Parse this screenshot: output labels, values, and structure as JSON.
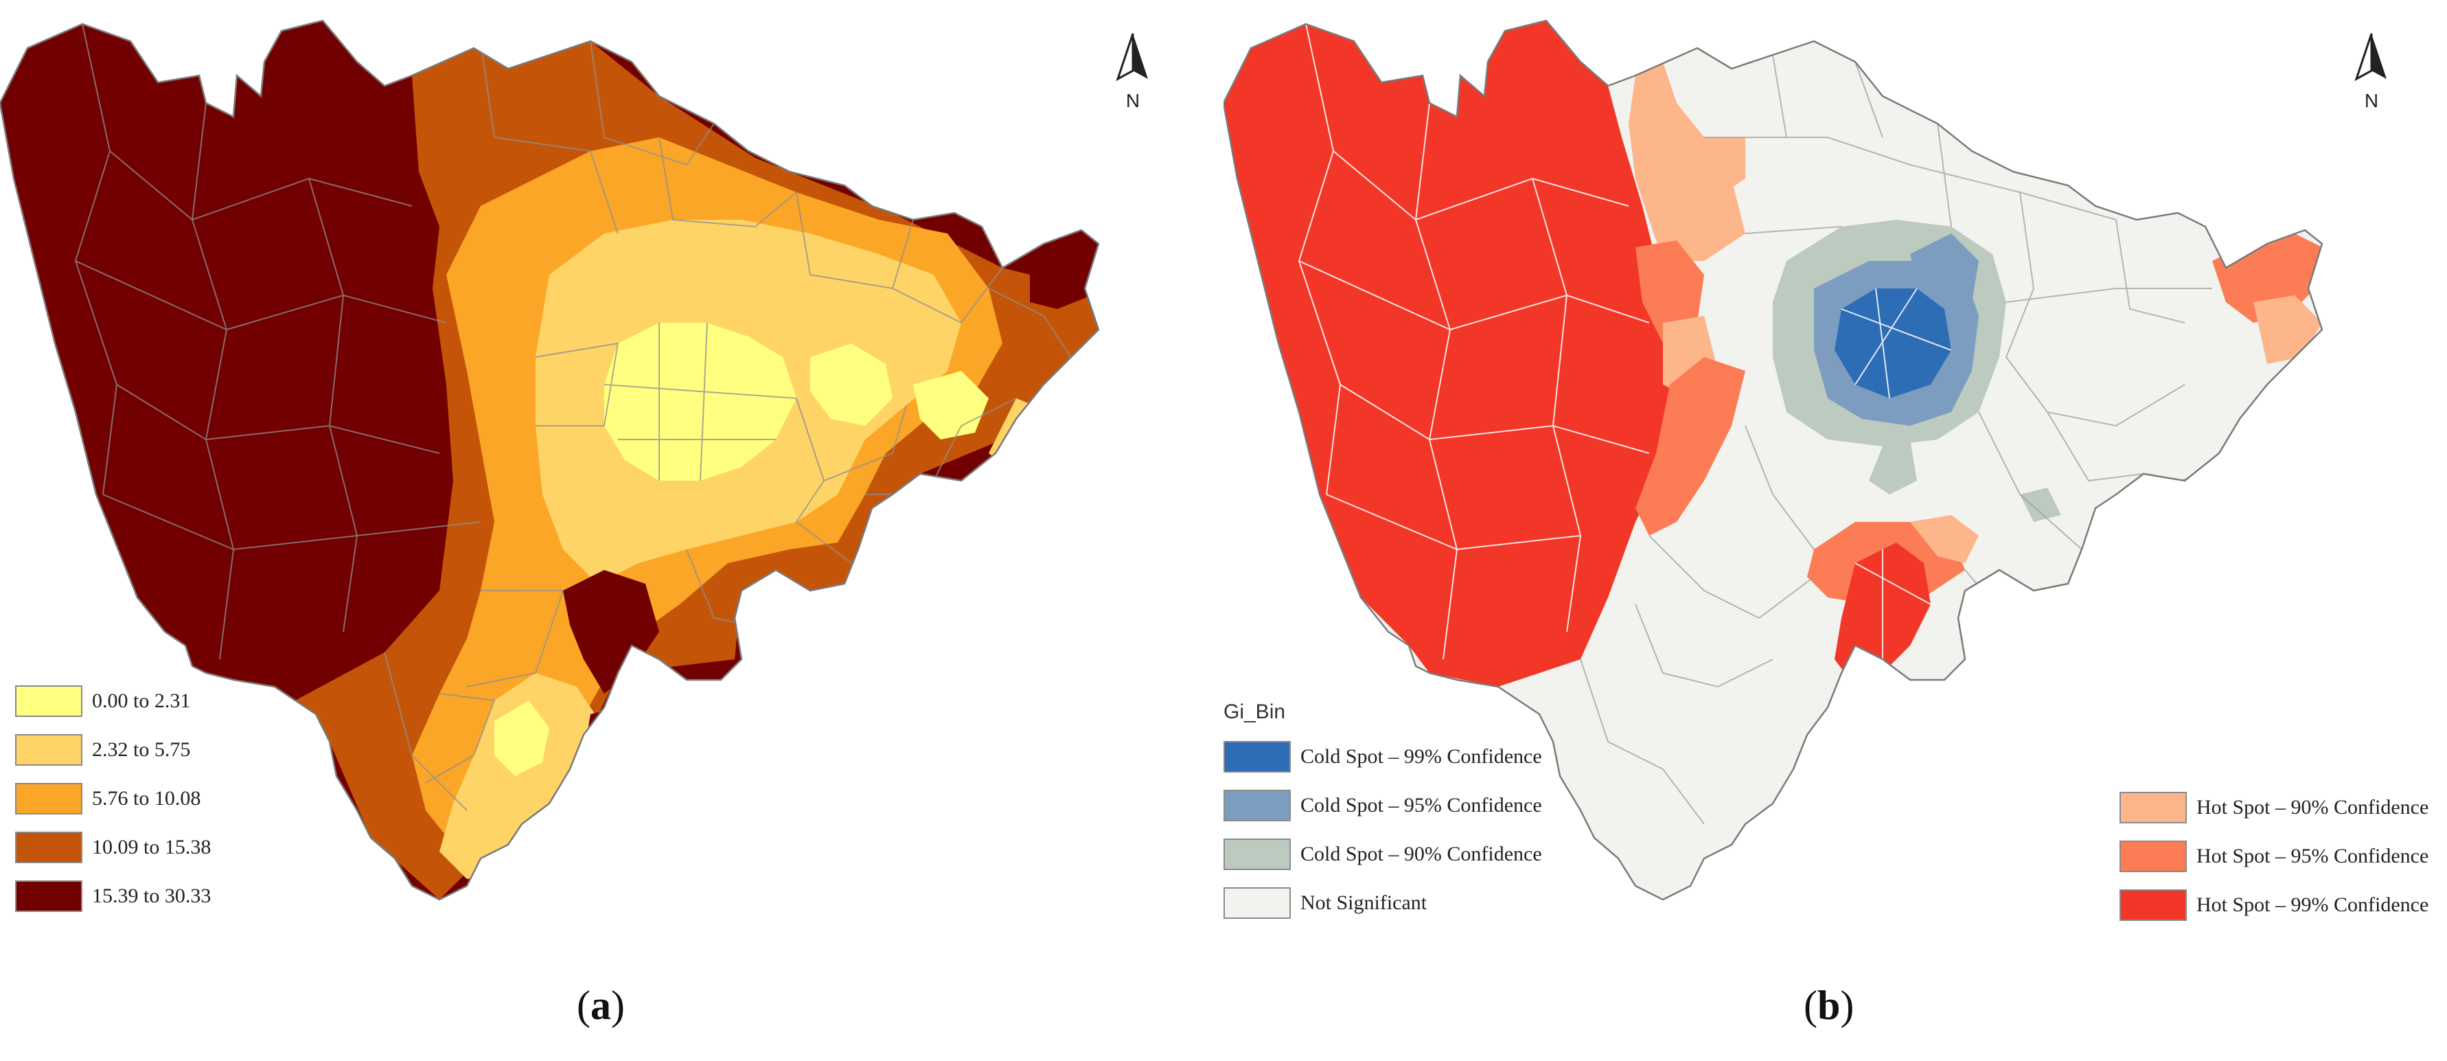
{
  "panels": {
    "a": {
      "caption_open": "(",
      "caption_letter": "a",
      "caption_close": ")",
      "north_label": "N",
      "legend": [
        {
          "label": "0.00  to 2.31",
          "color": "#ffff80"
        },
        {
          "label": "2.32  to 5.75",
          "color": "#fed467"
        },
        {
          "label": "5.76  to 10.08",
          "color": "#fba627"
        },
        {
          "label": "10.09  to 15.38",
          "color": "#c45508"
        },
        {
          "label": "15.39  to 30.33",
          "color": "#730000"
        }
      ]
    },
    "b": {
      "caption_open": "(",
      "caption_letter": "b",
      "caption_close": ")",
      "north_label": "N",
      "legend_title": "Gi_Bin",
      "legend_left": [
        {
          "label": "Cold Spot – 99% Confidence",
          "color": "#2d6db5"
        },
        {
          "label": "Cold Spot – 95% Confidence",
          "color": "#7c9dc0"
        },
        {
          "label": "Cold Spot – 90% Confidence",
          "color": "#bccabf"
        },
        {
          "label": "Not Significant",
          "color": "#f2f2ef"
        }
      ],
      "legend_right": [
        {
          "label": "Hot Spot – 90% Confidence",
          "color": "#fdb58a"
        },
        {
          "label": "Hot Spot – 95% Confidence",
          "color": "#fb7c55"
        },
        {
          "label": "Hot Spot – 99% Confidence",
          "color": "#f23628"
        }
      ]
    }
  }
}
